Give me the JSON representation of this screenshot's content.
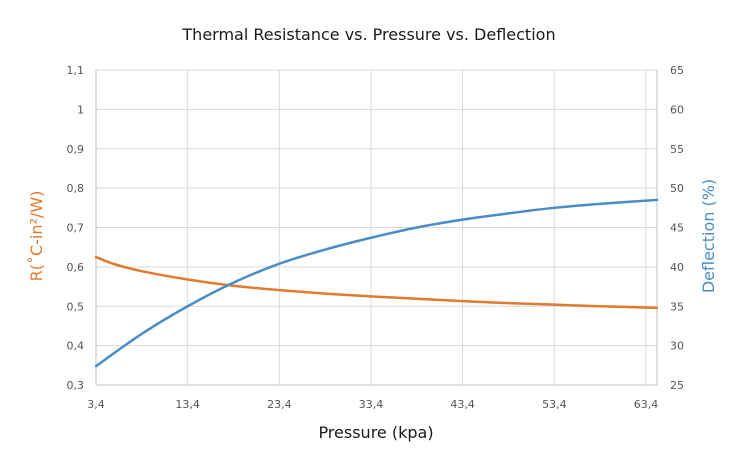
{
  "chart_data": {
    "type": "line",
    "title": "Thermal Resistance vs. Pressure vs. Deflection",
    "xlabel": "Pressure (kpa)",
    "ylabel_left": "R(˚C-in²/W)",
    "ylabel_right": "Deflection (%)",
    "x_ticks": [
      "3,4",
      "13,4",
      "23,4",
      "33,4",
      "43,4",
      "53,4",
      "63,4"
    ],
    "x_tick_values": [
      3.4,
      13.4,
      23.4,
      33.4,
      43.4,
      53.4,
      63.4
    ],
    "xlim": [
      3.4,
      64.6
    ],
    "y_left_ticks": [
      "0,3",
      "0,4",
      "0,5",
      "0,6",
      "0,7",
      "0,8",
      "0,9",
      "1",
      "1,1"
    ],
    "y_left_tick_values": [
      0.3,
      0.4,
      0.5,
      0.6,
      0.7,
      0.8,
      0.9,
      1.0,
      1.1
    ],
    "ylim_left": [
      0.3,
      1.1
    ],
    "y_right_ticks": [
      "25",
      "30",
      "35",
      "40",
      "45",
      "50",
      "55",
      "60",
      "65"
    ],
    "y_right_tick_values": [
      25,
      30,
      35,
      40,
      45,
      50,
      55,
      60,
      65
    ],
    "ylim_right": [
      25,
      65
    ],
    "grid": true,
    "series": [
      {
        "axis": "left",
        "color": "#e07a2f",
        "x": [
          3.4,
          5.4,
          8.4,
          13.4,
          18.4,
          23.4,
          28.4,
          33.4,
          38.4,
          43.4,
          48.4,
          53.4,
          58.4,
          64.6
        ],
        "values": [
          0.625,
          0.607,
          0.589,
          0.568,
          0.552,
          0.541,
          0.532,
          0.525,
          0.519,
          0.513,
          0.508,
          0.504,
          0.5,
          0.496
        ]
      },
      {
        "axis": "right",
        "color": "#4a8cc4",
        "x": [
          3.4,
          8.4,
          13.4,
          18.4,
          23.4,
          28.4,
          33.4,
          38.4,
          43.4,
          48.4,
          53.4,
          58.4,
          64.6
        ],
        "values": [
          27.4,
          31.5,
          35.0,
          38.0,
          40.4,
          42.2,
          43.7,
          45.0,
          46.0,
          46.8,
          47.5,
          48.0,
          48.5
        ]
      }
    ]
  }
}
